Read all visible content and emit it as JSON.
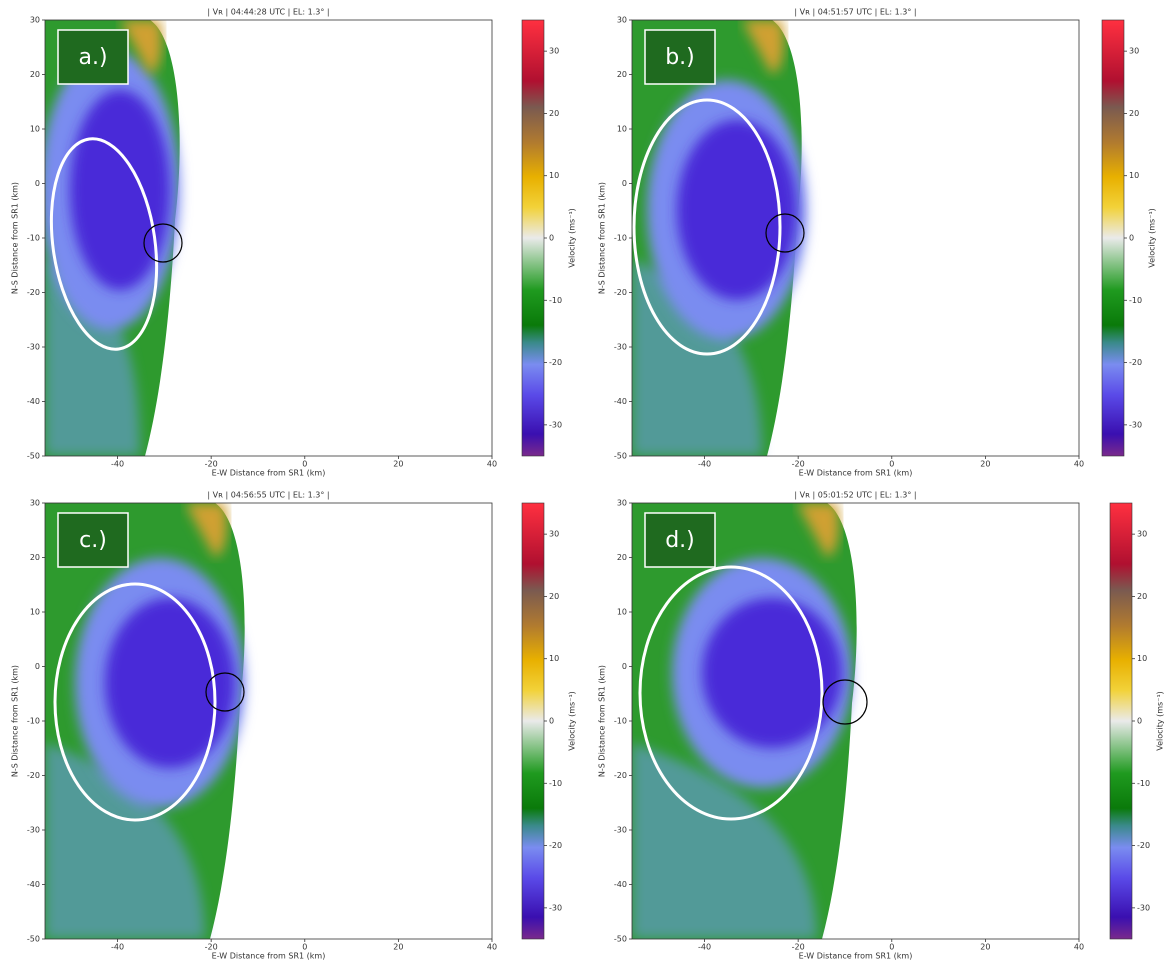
{
  "chart_data": [
    {
      "type": "heatmap",
      "title": "| Vʀ | 04:44:28 UTC | EL: 1.3° |",
      "annotation": "a.)",
      "xlabel": "E-W Distance from SR1 (km)",
      "ylabel": "N-S Distance from SR1 (km)",
      "xlim": [
        -55.5,
        40
      ],
      "xticks": [
        -40,
        -20,
        0,
        20,
        40
      ],
      "ylim": [
        -50,
        30
      ],
      "yticks": [
        -50,
        -40,
        -30,
        -20,
        -10,
        0,
        10,
        20,
        30
      ],
      "colorbar": {
        "label": "Velocity (ms⁻¹)",
        "lim": [
          -35,
          35
        ],
        "ticks": [
          -30,
          -20,
          -10,
          0,
          10,
          20,
          30
        ]
      }
    },
    {
      "type": "heatmap",
      "title": "| Vʀ | 04:51:57 UTC | EL: 1.3° |",
      "annotation": "b.)",
      "xlabel": "E-W Distance from SR1 (km)",
      "ylabel": "N-S Distance from SR1 (km)",
      "xlim": [
        -55.5,
        40
      ],
      "xticks": [
        -40,
        -20,
        0,
        20,
        40
      ],
      "ylim": [
        -50,
        30
      ],
      "yticks": [
        -50,
        -40,
        -30,
        -20,
        -10,
        0,
        10,
        20,
        30
      ],
      "colorbar": {
        "label": "Velocity (ms⁻¹)",
        "lim": [
          -35,
          35
        ],
        "ticks": [
          -30,
          -20,
          -10,
          0,
          10,
          20,
          30
        ]
      }
    },
    {
      "type": "heatmap",
      "title": "| Vʀ | 04:56:55 UTC | EL: 1.3° |",
      "annotation": "c.)",
      "xlabel": "E-W Distance from SR1 (km)",
      "ylabel": "N-S Distance from SR1 (km)",
      "xlim": [
        -55.5,
        40
      ],
      "xticks": [
        -40,
        -20,
        0,
        20,
        40
      ],
      "ylim": [
        -50,
        30
      ],
      "yticks": [
        -50,
        -40,
        -30,
        -20,
        -10,
        0,
        10,
        20,
        30
      ],
      "colorbar": {
        "label": "Velocity (ms⁻¹)",
        "lim": [
          -35,
          35
        ],
        "ticks": [
          -30,
          -20,
          -10,
          0,
          10,
          20,
          30
        ]
      }
    },
    {
      "type": "heatmap",
      "title": "| Vʀ | 05:01:52 UTC | EL: 1.3° |",
      "annotation": "d.)",
      "xlabel": "E-W Distance from SR1 (km)",
      "ylabel": "N-S Distance from SR1 (km)",
      "xlim": [
        -55.5,
        40
      ],
      "xticks": [
        -40,
        -20,
        0,
        20,
        40
      ],
      "ylim": [
        -50,
        30
      ],
      "yticks": [
        -50,
        -40,
        -30,
        -20,
        -10,
        0,
        10,
        20,
        30
      ],
      "colorbar": {
        "label": "Velocity (ms⁻¹)",
        "lim": [
          -35,
          35
        ],
        "ticks": [
          -30,
          -20,
          -10,
          0,
          10,
          20,
          30
        ]
      }
    }
  ]
}
